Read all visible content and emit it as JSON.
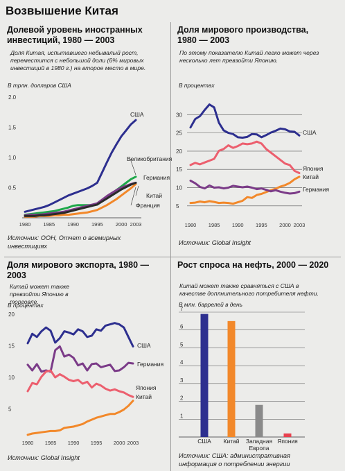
{
  "page_title": "Возвышение Китая",
  "panels": [
    {
      "title": "Долевой уровень иностранных инвестиций, 1980 — 2003",
      "note": "Доля Китая, испытавшего небывалый рост, переместится с небольшой доли (6% мировых инвестиций в 1980 г.) на второе место в мире.",
      "unit": "В трлн. долларов США",
      "source": "Источник: ООН, Отчет о всемирных инвестициях"
    },
    {
      "title": "Доля мирового производства, 1980 — 2003",
      "note": "По этому показателю Китай легко может через несколько лет превзойти Японию.",
      "unit": "В процентах",
      "source": "Источник: Global Insight"
    },
    {
      "title": "Доля мирового экспорта, 1980 — 2003",
      "note": "Китай может также превзойти Японию в торговле.",
      "unit": "В процентах",
      "source": "Источник: Global Insight"
    },
    {
      "title": "Рост спроса на нефть, 2000 — 2020",
      "note": "Китай может также сравняться с США в качестве доплнительного потребителя нефти.",
      "unit": "В млн. баррелей в день",
      "source": "Источник: США: административная информация о потреблении энергии"
    }
  ],
  "colors": {
    "usa": "#2d2f8f",
    "japan": "#ec5f6e",
    "germany": "#7b3b88",
    "china": "#f2882a",
    "uk": "#1fa84a",
    "france": "#2a2a2a",
    "europe": "#8a8a8a",
    "japan_bar": "#e8414f"
  },
  "chart_data": [
    {
      "type": "line",
      "x": [
        1980,
        1981,
        1982,
        1983,
        1984,
        1985,
        1986,
        1987,
        1988,
        1989,
        1990,
        1991,
        1992,
        1993,
        1994,
        1995,
        1996,
        1997,
        1998,
        1999,
        2000,
        2001,
        2002,
        2003
      ],
      "xticks": [
        "1980",
        "1985",
        "1990",
        "1995",
        "2000",
        "2003"
      ],
      "ylim": [
        0,
        2.0
      ],
      "yticks": [
        "0.5",
        "1.0",
        "1.5",
        "2.0"
      ],
      "series": [
        {
          "name": "США",
          "color_key": "usa",
          "values": [
            0.1,
            0.12,
            0.14,
            0.16,
            0.18,
            0.21,
            0.25,
            0.29,
            0.33,
            0.37,
            0.4,
            0.43,
            0.46,
            0.49,
            0.53,
            0.58,
            0.75,
            0.92,
            1.08,
            1.22,
            1.35,
            1.45,
            1.55,
            1.62
          ]
        },
        {
          "name": "Великобритания",
          "color_key": "uk",
          "values": [
            0.05,
            0.06,
            0.07,
            0.08,
            0.09,
            0.1,
            0.11,
            0.13,
            0.15,
            0.17,
            0.2,
            0.21,
            0.21,
            0.21,
            0.21,
            0.22,
            0.28,
            0.34,
            0.4,
            0.46,
            0.52,
            0.58,
            0.64,
            0.68
          ]
        },
        {
          "name": "Германия",
          "color_key": "germany",
          "values": [
            0.04,
            0.05,
            0.05,
            0.05,
            0.06,
            0.07,
            0.08,
            0.09,
            0.1,
            0.12,
            0.14,
            0.16,
            0.18,
            0.2,
            0.22,
            0.24,
            0.3,
            0.36,
            0.41,
            0.46,
            0.5,
            0.53,
            0.56,
            0.58
          ]
        },
        {
          "name": "Китай",
          "color_key": "china",
          "values": [
            0.02,
            0.02,
            0.02,
            0.03,
            0.03,
            0.03,
            0.04,
            0.04,
            0.05,
            0.05,
            0.06,
            0.07,
            0.08,
            0.09,
            0.11,
            0.13,
            0.17,
            0.21,
            0.26,
            0.31,
            0.37,
            0.43,
            0.49,
            0.56
          ]
        },
        {
          "name": "Франция",
          "color_key": "france",
          "values": [
            0.03,
            0.03,
            0.03,
            0.04,
            0.04,
            0.05,
            0.06,
            0.07,
            0.08,
            0.1,
            0.12,
            0.14,
            0.16,
            0.18,
            0.2,
            0.22,
            0.27,
            0.32,
            0.37,
            0.42,
            0.47,
            0.51,
            0.55,
            0.58
          ]
        }
      ]
    },
    {
      "type": "line",
      "x": [
        1980,
        1981,
        1982,
        1983,
        1984,
        1985,
        1986,
        1987,
        1988,
        1989,
        1990,
        1991,
        1992,
        1993,
        1994,
        1995,
        1996,
        1997,
        1998,
        1999,
        2000,
        2001,
        2002,
        2003
      ],
      "xticks": [
        "1980",
        "1985",
        "1990",
        "1995",
        "2000",
        "2003"
      ],
      "ylim": [
        2.5,
        35
      ],
      "yticks": [
        "5",
        "10",
        "15",
        "20",
        "25",
        "30"
      ],
      "grid": true,
      "series": [
        {
          "name": "США",
          "color_key": "usa",
          "values": [
            26.5,
            28.8,
            29.6,
            31.3,
            32.8,
            32.0,
            27.8,
            25.7,
            25.0,
            24.7,
            23.8,
            23.7,
            23.9,
            24.7,
            24.6,
            23.8,
            24.4,
            25.1,
            25.6,
            26.2,
            26.0,
            25.4,
            25.3,
            24.3
          ]
        },
        {
          "name": "Япония",
          "color_key": "japan",
          "values": [
            16.2,
            16.8,
            16.4,
            16.9,
            17.4,
            17.9,
            20.1,
            20.6,
            21.6,
            20.9,
            21.4,
            22.1,
            21.9,
            22.1,
            22.6,
            22.1,
            20.6,
            19.6,
            18.6,
            17.6,
            16.6,
            16.2,
            14.6,
            14.0
          ]
        },
        {
          "name": "Китай",
          "color_key": "china",
          "values": [
            5.8,
            5.9,
            6.2,
            6.0,
            6.3,
            6.1,
            5.8,
            5.9,
            5.8,
            5.6,
            6.0,
            6.4,
            7.4,
            7.2,
            8.0,
            8.3,
            8.8,
            9.3,
            9.7,
            10.3,
            10.7,
            11.3,
            12.3,
            13.0
          ]
        },
        {
          "name": "Германия",
          "color_key": "germany",
          "values": [
            11.9,
            11.2,
            10.2,
            9.8,
            10.6,
            10.0,
            10.1,
            9.8,
            10.0,
            10.5,
            10.3,
            10.1,
            10.3,
            10.0,
            9.6,
            9.8,
            9.4,
            9.0,
            9.3,
            8.9,
            8.6,
            8.4,
            8.5,
            8.9
          ]
        }
      ]
    },
    {
      "type": "line",
      "x": [
        1980,
        1981,
        1982,
        1983,
        1984,
        1985,
        1986,
        1987,
        1988,
        1989,
        1990,
        1991,
        1992,
        1993,
        1994,
        1995,
        1996,
        1997,
        1998,
        1999,
        2000,
        2001,
        2002,
        2003
      ],
      "xticks": [
        "1980",
        "1985",
        "1990",
        "1995",
        "2000",
        "2003"
      ],
      "ylim": [
        0,
        20
      ],
      "yticks": [
        "5",
        "10",
        "15",
        "20"
      ],
      "series": [
        {
          "name": "США",
          "color_key": "usa",
          "values": [
            15.4,
            16.9,
            16.4,
            17.3,
            17.9,
            17.4,
            15.5,
            16.2,
            17.3,
            17.1,
            16.8,
            17.6,
            17.3,
            16.4,
            16.6,
            17.6,
            17.4,
            18.2,
            18.4,
            18.6,
            18.4,
            17.9,
            16.4,
            14.9
          ]
        },
        {
          "name": "Германия",
          "color_key": "germany",
          "values": [
            12.0,
            11.1,
            12.1,
            10.9,
            11.1,
            10.9,
            14.3,
            14.9,
            13.3,
            13.6,
            13.1,
            11.9,
            12.2,
            11.1,
            12.1,
            12.2,
            11.6,
            11.8,
            12.0,
            11.0,
            11.1,
            11.6,
            12.3,
            12.2
          ]
        },
        {
          "name": "Япония",
          "color_key": "japan",
          "values": [
            7.8,
            9.1,
            8.9,
            10.1,
            10.9,
            11.1,
            10.0,
            10.5,
            10.1,
            9.6,
            9.4,
            9.6,
            9.0,
            9.3,
            8.4,
            9.0,
            8.7,
            8.2,
            7.9,
            8.1,
            7.8,
            7.6,
            7.2,
            6.9
          ]
        },
        {
          "name": "Китай",
          "color_key": "china",
          "values": [
            0.9,
            1.1,
            1.2,
            1.3,
            1.4,
            1.5,
            1.5,
            1.6,
            2.0,
            2.1,
            2.2,
            2.4,
            2.6,
            3.0,
            3.3,
            3.6,
            3.8,
            4.0,
            4.2,
            4.2,
            4.5,
            4.9,
            5.5,
            6.3
          ]
        }
      ]
    },
    {
      "type": "bar",
      "categories": [
        "США",
        "Китай",
        "Западная Европа",
        "Япония"
      ],
      "values": [
        6.9,
        6.5,
        1.8,
        0.2
      ],
      "ylim": [
        0,
        7
      ],
      "yticks": [
        "1",
        "2",
        "3",
        "4",
        "5",
        "6",
        "7"
      ],
      "grid": true,
      "bar_colors": [
        "usa",
        "china",
        "europe",
        "japan_bar"
      ]
    }
  ]
}
